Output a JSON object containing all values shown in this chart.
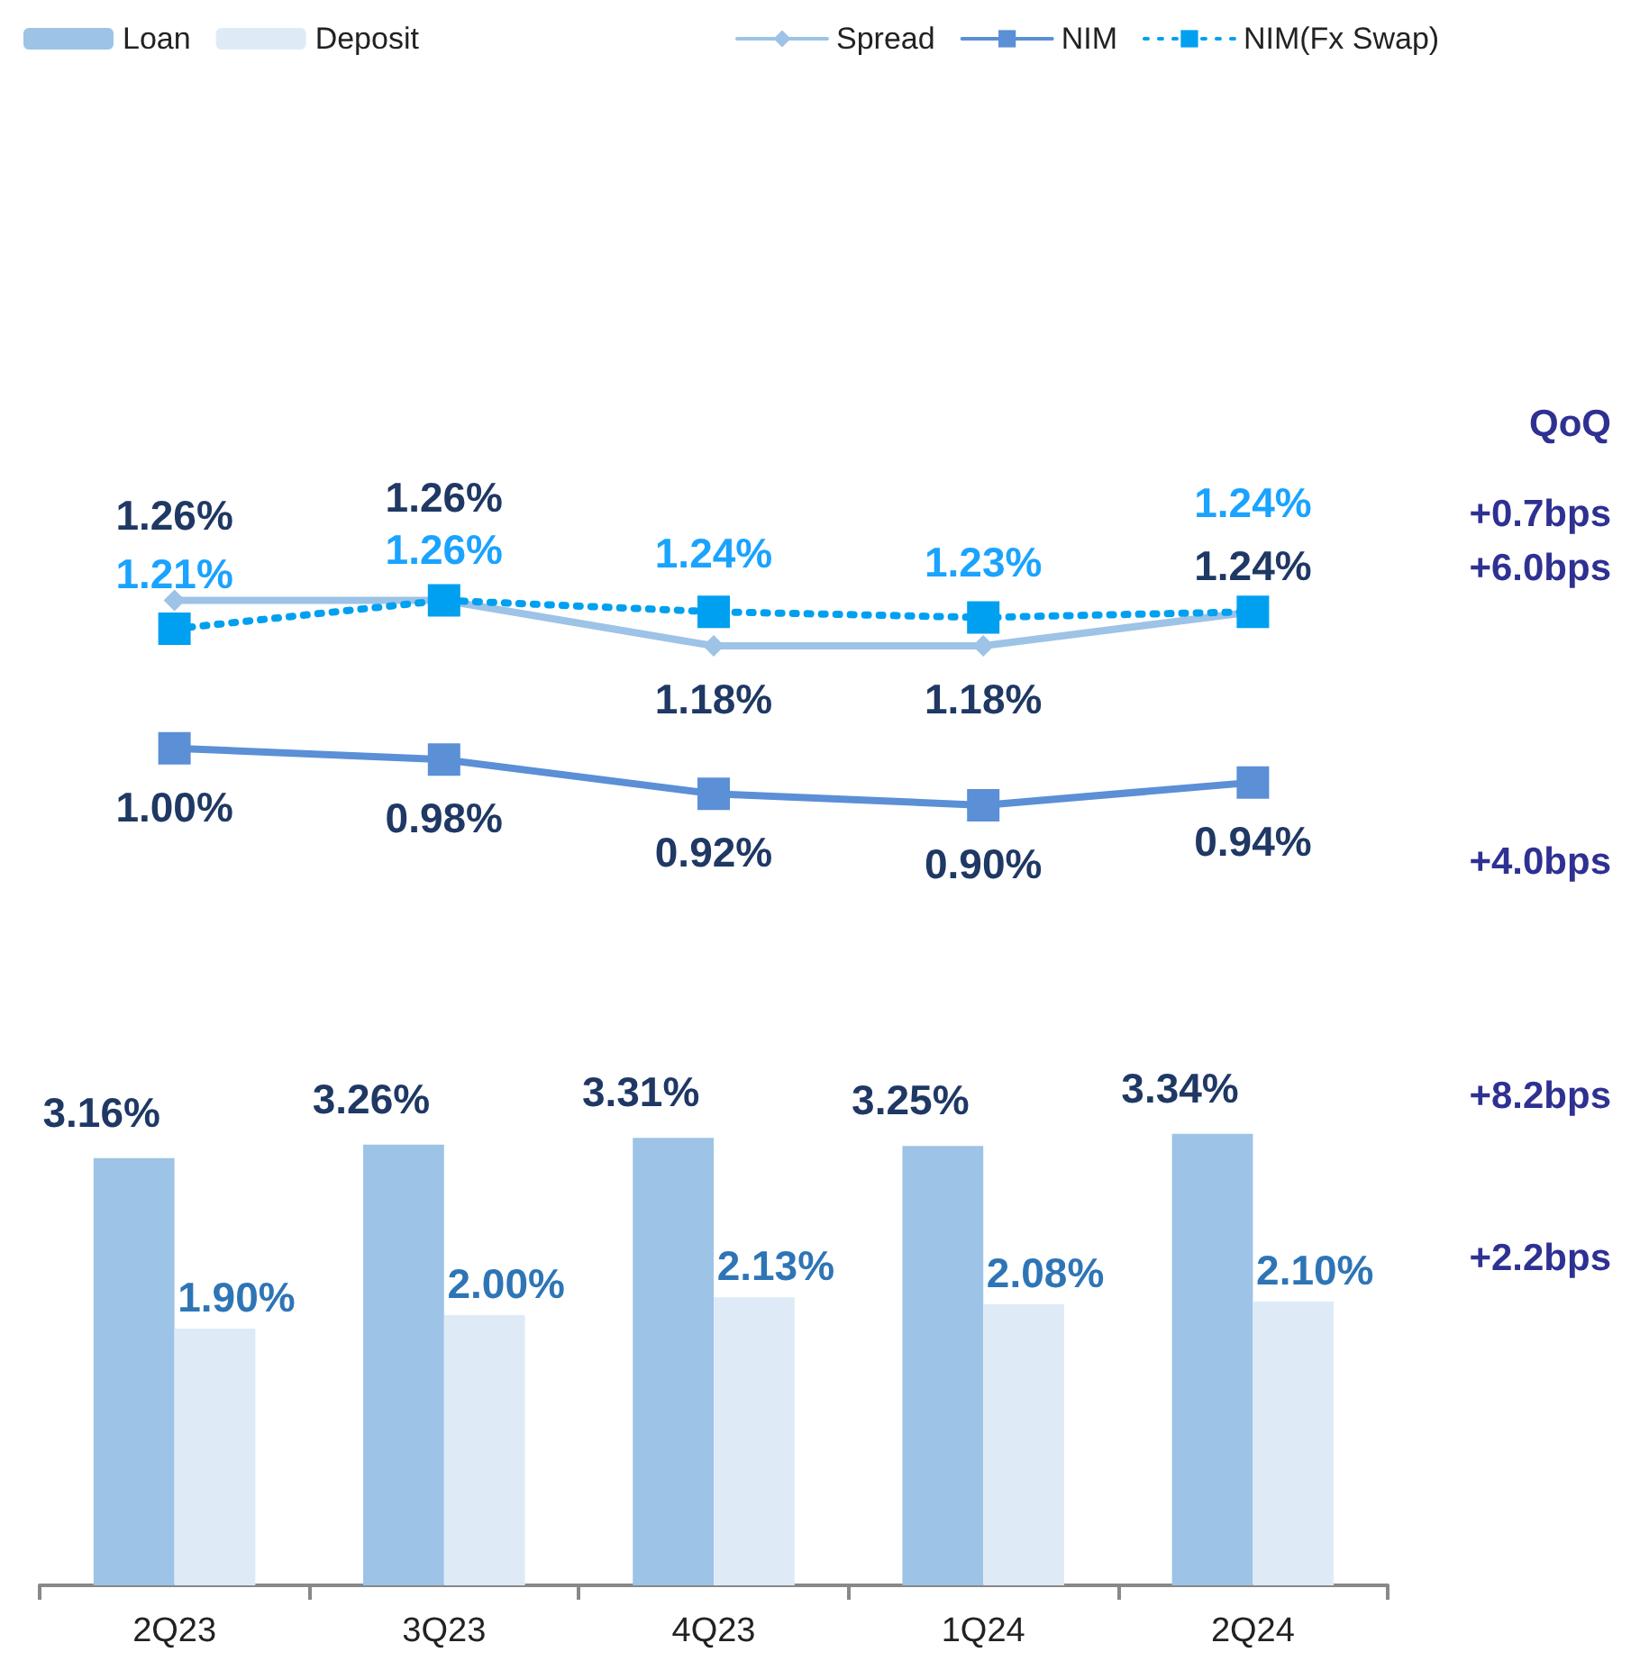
{
  "chart_data": [
    {
      "type": "line",
      "categories": [
        null,
        null,
        null,
        null,
        null
      ],
      "tick_labels": false,
      "series": [
        {
          "name": "Spread",
          "color": "#9dc3e6",
          "marker": "diamond",
          "values": [
            1.26,
            1.26,
            1.18,
            1.18,
            1.24
          ],
          "value_labels": [
            "1.26%",
            "1.26%",
            "1.18%",
            "1.18%",
            "1.24%"
          ]
        },
        {
          "name": "NIM",
          "color": "#5b8fd6",
          "marker": "square",
          "values": [
            1.0,
            0.98,
            0.92,
            0.9,
            0.94
          ],
          "value_labels": [
            "1.00%",
            "0.98%",
            "0.92%",
            "0.90%",
            "0.94%"
          ]
        },
        {
          "name": "NIM(Fx Swap)",
          "color": "#00a0f0",
          "marker": "square",
          "line_style": "dotted",
          "values": [
            1.21,
            1.26,
            1.24,
            1.23,
            1.24
          ],
          "value_labels": [
            "1.21%",
            "1.26%",
            "1.24%",
            "1.23%",
            "1.24%"
          ]
        }
      ],
      "legend": "top",
      "grid": false,
      "annotations": [
        "QoQ",
        "+0.7bps",
        "+6.0bps",
        "+4.0bps"
      ]
    },
    {
      "type": "bar",
      "categories": [
        "2Q23",
        "3Q23",
        "4Q23",
        "1Q24",
        "2Q24"
      ],
      "tick_labels": "x",
      "series": [
        {
          "name": "Loan",
          "color": "#9dc3e6",
          "values": [
            3.16,
            3.26,
            3.31,
            3.25,
            3.34
          ],
          "value_labels": [
            "3.16%",
            "3.26%",
            "3.31%",
            "3.25%",
            "3.34%"
          ]
        },
        {
          "name": "Deposit",
          "color": "#deebf7",
          "values": [
            1.9,
            2.0,
            2.13,
            2.08,
            2.1
          ],
          "value_labels": [
            "1.90%",
            "2.00%",
            "2.13%",
            "2.08%",
            "2.10%"
          ]
        }
      ],
      "legend": "top left",
      "grid": false,
      "annotations": [
        "+8.2bps",
        "+2.2bps"
      ]
    }
  ]
}
